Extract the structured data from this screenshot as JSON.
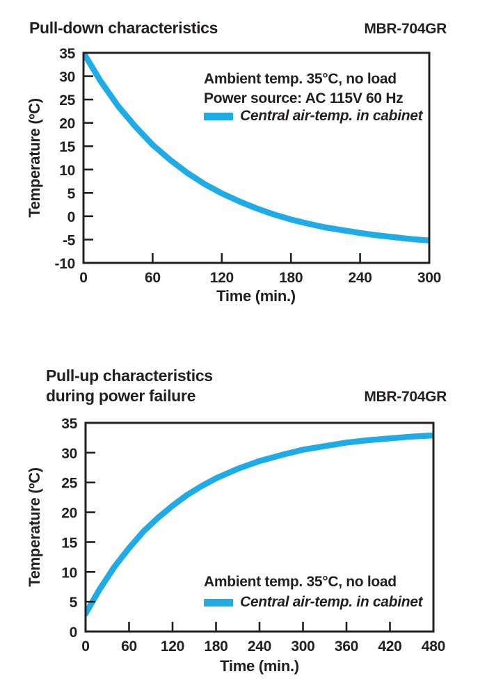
{
  "theme": {
    "background": "#ffffff",
    "text_color": "#231f20",
    "axis_color": "#231f20",
    "accent": "#1badе4"
  },
  "chart_data": [
    {
      "type": "line",
      "title": "Pull-down characteristics",
      "title_line2": "",
      "model": "MBR-704GR",
      "xlabel": "Time (min.)",
      "ylabel": "Temperature (ºC)",
      "xlim": [
        0,
        300
      ],
      "ylim": [
        -10,
        35
      ],
      "xticks": [
        0,
        60,
        120,
        180,
        240,
        300
      ],
      "yticks": [
        35,
        30,
        25,
        20,
        15,
        10,
        5,
        0,
        -5,
        -10
      ],
      "grid": false,
      "legend_position": "upper-right-inside",
      "annotations": [
        "Ambient temp. 35°C, no load",
        "Power source: AC 115V 60 Hz"
      ],
      "legend": {
        "label": "Central air-temp. in cabinet",
        "color": "#1face6"
      },
      "series": [
        {
          "name": "Central air-temp. in cabinet",
          "color": "#1face6",
          "x": [
            0,
            15,
            30,
            45,
            60,
            75,
            90,
            105,
            120,
            135,
            150,
            165,
            180,
            195,
            210,
            225,
            240,
            255,
            270,
            285,
            300
          ],
          "y": [
            35,
            28.9,
            23.6,
            19.2,
            15.3,
            12.1,
            9.3,
            6.9,
            4.9,
            3.2,
            1.7,
            0.4,
            -0.7,
            -1.6,
            -2.4,
            -3.0,
            -3.6,
            -4.1,
            -4.5,
            -4.9,
            -5.2
          ]
        }
      ]
    },
    {
      "type": "line",
      "title": "Pull-up characteristics",
      "title_line2": "during power failure",
      "model": "MBR-704GR",
      "xlabel": "Time (min.)",
      "ylabel": "Temperature (ºC)",
      "xlim": [
        0,
        480
      ],
      "ylim": [
        0,
        35
      ],
      "xticks": [
        0,
        60,
        120,
        180,
        240,
        300,
        360,
        420,
        480
      ],
      "yticks": [
        35,
        30,
        25,
        20,
        15,
        10,
        5,
        0
      ],
      "grid": false,
      "legend_position": "lower-right-inside",
      "annotations": [
        "Ambient temp. 35°C, no load"
      ],
      "legend": {
        "label": "Central air-temp. in cabinet",
        "color": "#1face6"
      },
      "series": [
        {
          "name": "Central air-temp. in cabinet",
          "color": "#1face6",
          "x": [
            0,
            20,
            40,
            60,
            80,
            100,
            120,
            140,
            160,
            180,
            210,
            240,
            270,
            300,
            330,
            360,
            390,
            420,
            450,
            480
          ],
          "y": [
            3.0,
            7.2,
            10.9,
            14.0,
            16.8,
            19.1,
            21.1,
            22.9,
            24.4,
            25.7,
            27.3,
            28.6,
            29.6,
            30.5,
            31.1,
            31.7,
            32.1,
            32.4,
            32.7,
            32.9
          ]
        }
      ]
    }
  ]
}
